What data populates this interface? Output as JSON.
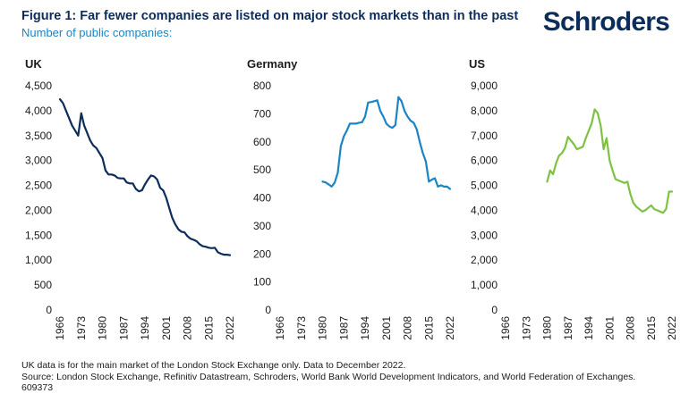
{
  "figure": {
    "title": "Figure 1: Far fewer companies are listed on major stock markets than in the past",
    "subtitle": "Number of public companies:",
    "brand": "Schroders"
  },
  "notes": [
    "UK data is for the main market of the London Stock Exchange only. Data to December 2022.",
    "Source: London Stock Exchange, Refinitiv Datastream, Schroders, World Bank World Development Indicators, and World Federation of Exchanges.",
    "609373"
  ],
  "colors": {
    "uk": "#0c2d5b",
    "germany": "#1a85c4",
    "us": "#7dc242",
    "title": "#0c2d5b",
    "subtitle": "#1a85c4"
  },
  "chart_data": [
    {
      "type": "line",
      "title": "UK",
      "xlabel": "",
      "ylabel": "",
      "xlim": [
        1966,
        2022
      ],
      "ylim": [
        0,
        4500
      ],
      "xticks": [
        1966,
        1973,
        1980,
        1987,
        1994,
        2001,
        2008,
        2015,
        2022
      ],
      "yticks": [
        0,
        500,
        1000,
        1500,
        2000,
        2500,
        3000,
        3500,
        4000,
        4500
      ],
      "grid": false,
      "series": [
        {
          "x": [
            1966,
            1967,
            1968,
            1969,
            1970,
            1971,
            1972,
            1973,
            1974,
            1975,
            1976,
            1977,
            1978,
            1979,
            1980,
            1981,
            1982,
            1983,
            1984,
            1985,
            1986,
            1987,
            1988,
            1989,
            1990,
            1991,
            1992,
            1993,
            1994,
            1995,
            1996,
            1997,
            1998,
            1999,
            2000,
            2001,
            2002,
            2003,
            2004,
            2005,
            2006,
            2007,
            2008,
            2009,
            2010,
            2011,
            2012,
            2013,
            2014,
            2015,
            2016,
            2017,
            2018,
            2019,
            2020,
            2021,
            2022
          ],
          "y": [
            4230,
            4150,
            4000,
            3850,
            3700,
            3600,
            3500,
            3950,
            3700,
            3550,
            3400,
            3300,
            3250,
            3150,
            3050,
            2800,
            2720,
            2720,
            2700,
            2650,
            2640,
            2640,
            2560,
            2540,
            2540,
            2430,
            2380,
            2400,
            2520,
            2620,
            2700,
            2680,
            2620,
            2450,
            2400,
            2250,
            2050,
            1850,
            1720,
            1620,
            1570,
            1560,
            1480,
            1430,
            1410,
            1380,
            1320,
            1280,
            1270,
            1250,
            1240,
            1250,
            1160,
            1130,
            1110,
            1110,
            1100
          ]
        }
      ]
    },
    {
      "type": "line",
      "title": "Germany",
      "xlabel": "",
      "ylabel": "",
      "xlim": [
        1966,
        2022
      ],
      "ylim": [
        0,
        800
      ],
      "xticks": [
        1966,
        1973,
        1980,
        1987,
        1994,
        2001,
        2008,
        2015,
        2022
      ],
      "yticks": [
        0,
        100,
        200,
        300,
        400,
        500,
        600,
        700,
        800
      ],
      "grid": false,
      "series": [
        {
          "x": [
            1980,
            1981,
            1982,
            1983,
            1984,
            1985,
            1986,
            1987,
            1988,
            1989,
            1990,
            1991,
            1992,
            1993,
            1994,
            1995,
            1996,
            1997,
            1998,
            1999,
            2000,
            2001,
            2002,
            2003,
            2004,
            2005,
            2006,
            2007,
            2008,
            2009,
            2010,
            2011,
            2012,
            2013,
            2014,
            2015,
            2016,
            2017,
            2018,
            2019,
            2020,
            2021,
            2022
          ],
          "y": [
            458,
            455,
            448,
            440,
            455,
            490,
            585,
            620,
            640,
            665,
            665,
            665,
            668,
            670,
            690,
            740,
            742,
            745,
            748,
            710,
            690,
            665,
            655,
            650,
            660,
            760,
            745,
            710,
            690,
            675,
            668,
            645,
            600,
            560,
            530,
            458,
            465,
            470,
            440,
            445,
            440,
            440,
            432
          ]
        }
      ]
    },
    {
      "type": "line",
      "title": "US",
      "xlabel": "",
      "ylabel": "",
      "xlim": [
        1966,
        2022
      ],
      "ylim": [
        0,
        9000
      ],
      "xticks": [
        1966,
        1973,
        1980,
        1987,
        1994,
        2001,
        2008,
        2015,
        2022
      ],
      "yticks": [
        0,
        1000,
        2000,
        3000,
        4000,
        5000,
        6000,
        7000,
        8000,
        9000
      ],
      "grid": false,
      "series": [
        {
          "x": [
            1980,
            1981,
            1982,
            1983,
            1984,
            1985,
            1986,
            1987,
            1988,
            1989,
            1990,
            1991,
            1992,
            1993,
            1994,
            1995,
            1996,
            1997,
            1998,
            1999,
            2000,
            2001,
            2002,
            2003,
            2004,
            2005,
            2006,
            2007,
            2008,
            2009,
            2010,
            2011,
            2012,
            2013,
            2014,
            2015,
            2016,
            2017,
            2018,
            2019,
            2020,
            2021,
            2022
          ],
          "y": [
            5150,
            5600,
            5450,
            5900,
            6200,
            6300,
            6500,
            6950,
            6800,
            6650,
            6450,
            6500,
            6550,
            6900,
            7200,
            7500,
            8050,
            7900,
            7400,
            6450,
            6900,
            6000,
            5600,
            5250,
            5200,
            5150,
            5100,
            5150,
            4650,
            4300,
            4150,
            4050,
            3950,
            4000,
            4100,
            4200,
            4050,
            4000,
            3950,
            3900,
            4050,
            4750,
            4750
          ]
        }
      ]
    }
  ]
}
